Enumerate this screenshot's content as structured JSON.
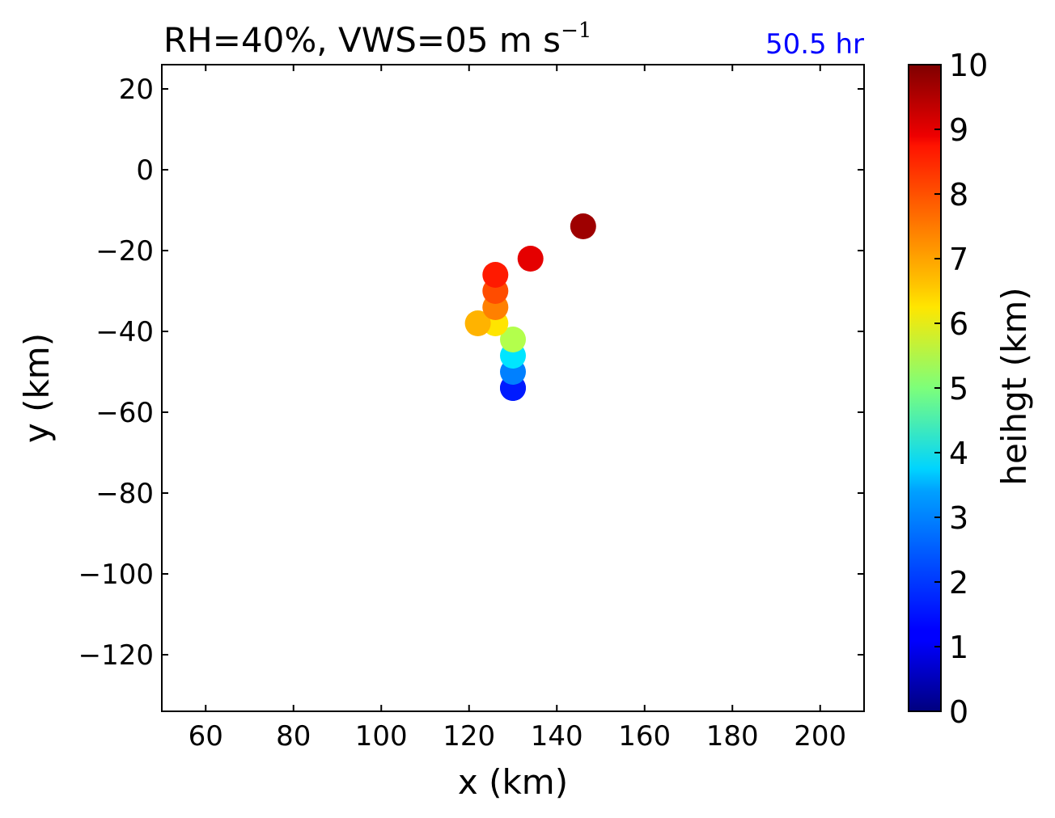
{
  "chart_data": {
    "type": "scatter",
    "title": {
      "main": "RH=40%, VWS=05 m s",
      "sup": "−1"
    },
    "annotation": "50.5 hr",
    "annotation_color": "#0000ff",
    "xlabel": "x (km)",
    "ylabel": "y (km)",
    "xlim": [
      50,
      210
    ],
    "ylim": [
      -134,
      26
    ],
    "xticks": [
      60,
      80,
      100,
      120,
      140,
      160,
      180,
      200
    ],
    "yticks": [
      20,
      0,
      -20,
      -40,
      -60,
      -80,
      -100,
      -120
    ],
    "xtick_labels": [
      "60",
      "80",
      "100",
      "120",
      "140",
      "160",
      "180",
      "200"
    ],
    "ytick_labels": [
      "20",
      "0",
      "−20",
      "−40",
      "−60",
      "−80",
      "−100",
      "−120"
    ],
    "grid": false,
    "colorbar": {
      "label": "heihgt (km)",
      "range": [
        0,
        10
      ],
      "ticks": [
        0,
        1,
        2,
        3,
        4,
        5,
        6,
        7,
        8,
        9,
        10
      ],
      "tick_labels": [
        "0",
        "1",
        "2",
        "3",
        "4",
        "5",
        "6",
        "7",
        "8",
        "9",
        "10"
      ],
      "colormap": "jet",
      "colors": [
        "#00007f",
        "#0000ff",
        "#007fff",
        "#00ffff",
        "#7fff7f",
        "#ffff00",
        "#ff7f00",
        "#ff0000",
        "#7f0000"
      ]
    },
    "points": [
      {
        "x": 130,
        "y": -54,
        "height": 1.0
      },
      {
        "x": 130,
        "y": -54,
        "height": 1.5
      },
      {
        "x": 130,
        "y": -50,
        "height": 2.5
      },
      {
        "x": 130,
        "y": -46,
        "height": 3.5
      },
      {
        "x": 130,
        "y": -42,
        "height": 5.5
      },
      {
        "x": 126,
        "y": -38,
        "height": 6.5
      },
      {
        "x": 122,
        "y": -38,
        "height": 7.0
      },
      {
        "x": 126,
        "y": -34,
        "height": 7.5
      },
      {
        "x": 126,
        "y": -30,
        "height": 8.0
      },
      {
        "x": 126,
        "y": -26,
        "height": 8.5
      },
      {
        "x": 134,
        "y": -22,
        "height": 9.0
      },
      {
        "x": 146,
        "y": -14,
        "height": 9.7
      }
    ]
  }
}
